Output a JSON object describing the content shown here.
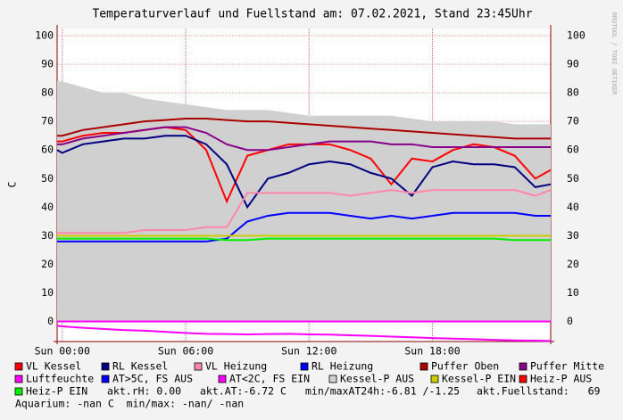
{
  "chart_data": {
    "type": "line",
    "title": "Temperaturverlauf und Fuellstand am: 07.02.2021, Stand 23:45Uhr",
    "y_label": "C",
    "watermark": "RRDTOOL / TOBI OETIKER",
    "x": [
      -0.25,
      0,
      1,
      2,
      3,
      4,
      5,
      6,
      7,
      8,
      9,
      10,
      11,
      12,
      13,
      14,
      15,
      16,
      17,
      18,
      19,
      20,
      21,
      22,
      23,
      23.75
    ],
    "xlim": [
      -0.25,
      23.75
    ],
    "xticks": [
      {
        "value": 0,
        "label": "Sun 00:00"
      },
      {
        "value": 6,
        "label": "Sun 06:00"
      },
      {
        "value": 12,
        "label": "Sun 12:00"
      },
      {
        "value": 18,
        "label": "Sun 18:00"
      }
    ],
    "ylim": [
      -7,
      102.5
    ],
    "yticks": [
      0,
      10,
      20,
      30,
      40,
      50,
      60,
      70,
      80,
      90,
      100
    ],
    "grid": true,
    "series": [
      {
        "name": "VL Kessel",
        "color": "#ff0000",
        "values": [
          63,
          63,
          65,
          66,
          66,
          67,
          68,
          67,
          60,
          42,
          58,
          60,
          62,
          62,
          62,
          60,
          57,
          48,
          57,
          56,
          60,
          62,
          61,
          58,
          50,
          53
        ]
      },
      {
        "name": "RL Kessel",
        "color": "#000080",
        "values": [
          60,
          59,
          62,
          63,
          64,
          64,
          65,
          65,
          62,
          55,
          40,
          50,
          52,
          55,
          56,
          55,
          52,
          50,
          44,
          54,
          56,
          55,
          55,
          54,
          47,
          48
        ]
      },
      {
        "name": "VL Heizung",
        "color": "#ff88aa",
        "values": [
          31,
          31,
          31,
          31,
          31,
          32,
          32,
          32,
          33,
          33,
          45,
          45,
          45,
          45,
          45,
          44,
          45,
          46,
          45,
          46,
          46,
          46,
          46,
          46,
          44,
          46
        ]
      },
      {
        "name": "RL Heizung",
        "color": "#0000ff",
        "values": [
          28,
          28,
          28,
          28,
          28,
          28,
          28,
          28,
          28,
          29,
          35,
          37,
          38,
          38,
          38,
          37,
          36,
          37,
          36,
          37,
          38,
          38,
          38,
          38,
          37,
          37
        ]
      },
      {
        "name": "Puffer Oben",
        "color": "#aa0000",
        "values": [
          65,
          65,
          67,
          68,
          69,
          70,
          70.5,
          71,
          71,
          70.5,
          70,
          70,
          69.5,
          69,
          68.5,
          68,
          67.5,
          67,
          66.5,
          66,
          65.5,
          65,
          64.5,
          64,
          64,
          64
        ]
      },
      {
        "name": "Puffer Mitte",
        "color": "#880088",
        "values": [
          62,
          62,
          64,
          65,
          66,
          67,
          68,
          68,
          66,
          62,
          60,
          60,
          61,
          62,
          63,
          63,
          63,
          62,
          62,
          61,
          61,
          61,
          61,
          61,
          61,
          61
        ]
      },
      {
        "name": "Luftfeuchte",
        "color": "#ff00ff",
        "values": [
          0,
          0,
          0,
          0,
          0,
          0,
          0,
          0,
          0,
          0,
          0,
          0,
          0,
          0,
          0,
          0,
          0,
          0,
          0,
          0,
          0,
          0,
          0,
          0,
          0,
          0
        ]
      },
      {
        "name": "AT>5C, FS AUS",
        "color": "#0000ff"
      },
      {
        "name": "AT<2C, FS EIN",
        "color": "#ff00ff",
        "values": [
          -1.5,
          -1.7,
          -2.2,
          -2.6,
          -3,
          -3.2,
          -3.6,
          -4,
          -4.3,
          -4.4,
          -4.5,
          -4.4,
          -4.3,
          -4.5,
          -4.6,
          -4.8,
          -5,
          -5.3,
          -5.5,
          -5.8,
          -6,
          -6.2,
          -6.4,
          -6.6,
          -6.7,
          -6.8
        ]
      },
      {
        "name": "Kessel-P AUS",
        "color": "#d0d0d0",
        "area": true,
        "values": [
          84,
          84,
          82,
          80,
          80,
          78,
          77,
          76,
          75,
          74,
          74,
          74,
          73,
          72,
          72,
          72,
          72,
          72,
          71,
          70,
          70,
          70,
          70,
          69,
          69,
          69
        ]
      },
      {
        "name": "Kessel-P EIN",
        "color": "#cccc00",
        "values": [
          30,
          30,
          30,
          30,
          30,
          30,
          30,
          30,
          30,
          30,
          30,
          30,
          30,
          30,
          30,
          30,
          30,
          30,
          30,
          30,
          30,
          30,
          30,
          30,
          30,
          30
        ]
      },
      {
        "name": "Heiz-P AUS",
        "color": "#ff0000"
      },
      {
        "name": "Heiz-P EIN",
        "color": "#00ee00",
        "values": [
          29,
          29,
          29,
          29,
          29,
          29,
          29,
          29,
          29,
          28.5,
          28.5,
          29,
          29,
          29,
          29,
          29,
          29,
          29,
          29,
          29,
          29,
          29,
          29,
          28.5,
          28.5,
          28.5
        ]
      }
    ],
    "status": [
      "akt.rH: 0.00",
      "akt.AT:-6.72 C",
      "min/maxAT24h:-6.81 /-1.25",
      "akt.Fuellstand:   69"
    ],
    "footer": "Aquarium: -nan C  min/max: -nan/ -nan"
  }
}
